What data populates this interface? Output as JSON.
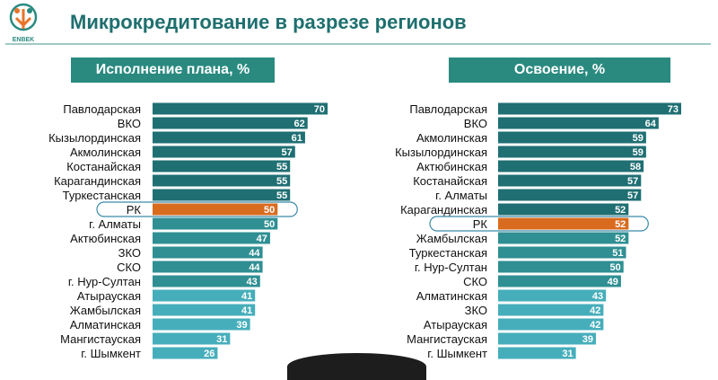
{
  "header": {
    "title": "Микрокредитование в разрезе регионов",
    "logo_text": "ENBEK"
  },
  "colors": {
    "teal_dark": "#1f6f73",
    "teal_mid": "#2f8f93",
    "teal_light": "#46aebb",
    "highlight": "#d96b1f",
    "header_bg": "#2a8a80"
  },
  "chart_data": [
    {
      "type": "bar",
      "orientation": "horizontal",
      "title": "Исполнение плана, %",
      "highlight": "РК",
      "xlim": [
        0,
        70
      ],
      "categories": [
        "Павлодарская",
        "ВКО",
        "Кызылординская",
        "Акмолинская",
        "Костанайская",
        "Карагандинская",
        "Туркестанская",
        "РК",
        "г. Алматы",
        "Актюбинская",
        "ЗКО",
        "СКО",
        "г. Нур-Султан",
        "Атырауская",
        "Жамбылская",
        "Алматинская",
        "Мангистауская",
        "г. Шымкент"
      ],
      "values": [
        70,
        62,
        61,
        57,
        55,
        55,
        55,
        50,
        50,
        47,
        44,
        44,
        43,
        41,
        41,
        39,
        31,
        26
      ]
    },
    {
      "type": "bar",
      "orientation": "horizontal",
      "title": "Освоение, %",
      "highlight": "РК",
      "xlim": [
        0,
        73
      ],
      "categories": [
        "Павлодарская",
        "ВКО",
        "Акмолинская",
        "Кызылординская",
        "Актюбинская",
        "Костанайская",
        "г. Алматы",
        "Карагандинская",
        "РК",
        "Жамбылская",
        "Туркестанская",
        "г. Нур-Султан",
        "СКО",
        "Алматинская",
        "ЗКО",
        "Атырауская",
        "Мангистауская",
        "г. Шымкент"
      ],
      "values": [
        73,
        64,
        59,
        59,
        58,
        57,
        57,
        52,
        52,
        52,
        51,
        50,
        49,
        43,
        42,
        42,
        39,
        31
      ]
    }
  ]
}
